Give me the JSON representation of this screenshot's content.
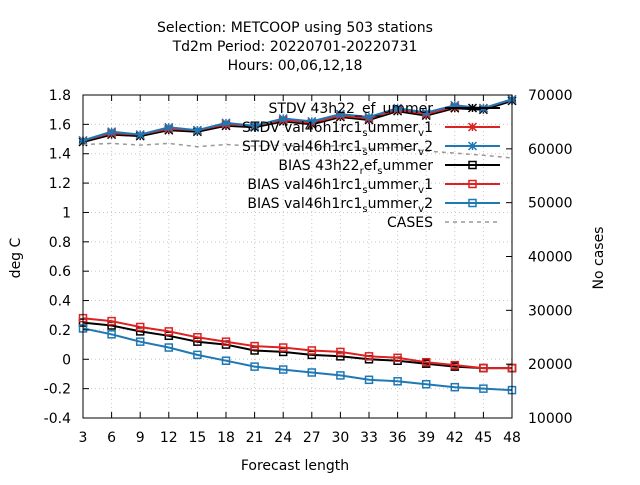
{
  "chart_data": {
    "type": "line",
    "title_lines": [
      "Selection: METCOOP using   503 stations",
      "Td2m   Period: 20220701-20220731",
      "Hours:  00,06,12,18"
    ],
    "xlabel": "Forecast length",
    "ylabel": "deg C",
    "y2label": "No cases",
    "x": [
      3,
      6,
      9,
      12,
      15,
      18,
      21,
      24,
      27,
      30,
      33,
      36,
      39,
      42,
      45,
      48
    ],
    "xlim": [
      3,
      48
    ],
    "ylim": [
      -0.4,
      1.8
    ],
    "y2lim": [
      10000,
      70000
    ],
    "yticks": [
      "1.8",
      "1.6",
      "1.4",
      "1.2",
      "1",
      "0.8",
      "0.6",
      "0.4",
      "0.2",
      "0",
      "-0.2",
      "-0.4"
    ],
    "y2ticks": [
      "70000",
      "60000",
      "50000",
      "40000",
      "30000",
      "20000",
      "10000"
    ],
    "grid": true,
    "legend_position": "top-right",
    "series": [
      {
        "name": "STDV 43h22_ef_ummer",
        "axis": "y1",
        "color": "#000000",
        "marker": "star",
        "dash": "",
        "values": [
          1.48,
          1.53,
          1.52,
          1.56,
          1.55,
          1.59,
          1.58,
          1.62,
          1.6,
          1.65,
          1.63,
          1.69,
          1.66,
          1.71,
          1.7,
          1.76
        ]
      },
      {
        "name": "STDV val46h1rc1_summer_v1",
        "axis": "y1",
        "color": "#dd2222",
        "marker": "star",
        "dash": "",
        "values": [
          1.49,
          1.54,
          1.53,
          1.57,
          1.56,
          1.6,
          1.59,
          1.63,
          1.61,
          1.66,
          1.64,
          1.7,
          1.67,
          1.72,
          1.71,
          1.77
        ]
      },
      {
        "name": "STDV val46h1rc1_summer_v2",
        "axis": "y1",
        "color": "#1f78b4",
        "marker": "star",
        "dash": "",
        "values": [
          1.49,
          1.55,
          1.53,
          1.58,
          1.56,
          1.61,
          1.59,
          1.64,
          1.62,
          1.67,
          1.65,
          1.71,
          1.68,
          1.73,
          1.71,
          1.77
        ]
      },
      {
        "name": "BIAS 43h22_ref_summer",
        "axis": "y1",
        "color": "#000000",
        "marker": "square",
        "dash": "",
        "values": [
          0.25,
          0.23,
          0.19,
          0.16,
          0.12,
          0.1,
          0.06,
          0.05,
          0.03,
          0.02,
          0.0,
          -0.01,
          -0.03,
          -0.05,
          -0.06,
          -0.06
        ]
      },
      {
        "name": "BIAS val46h1rc1_summer_v1",
        "axis": "y1",
        "color": "#dd2222",
        "marker": "square",
        "dash": "",
        "values": [
          0.28,
          0.26,
          0.22,
          0.19,
          0.15,
          0.12,
          0.09,
          0.08,
          0.06,
          0.05,
          0.02,
          0.01,
          -0.02,
          -0.04,
          -0.06,
          -0.06
        ]
      },
      {
        "name": "BIAS val46h1rc1_summer_v2",
        "axis": "y1",
        "color": "#1f78b4",
        "marker": "square",
        "dash": "",
        "values": [
          0.21,
          0.17,
          0.12,
          0.08,
          0.03,
          -0.01,
          -0.05,
          -0.07,
          -0.09,
          -0.11,
          -0.14,
          -0.15,
          -0.17,
          -0.19,
          -0.2,
          -0.21
        ]
      },
      {
        "name": "CASES",
        "axis": "y2",
        "color": "#999999",
        "marker": "none",
        "dash": "4,4",
        "values": [
          60800,
          61000,
          60700,
          61000,
          60400,
          60800,
          60500,
          60700,
          60300,
          60600,
          60000,
          60300,
          59600,
          59200,
          58800,
          58300
        ]
      }
    ],
    "legend": [
      {
        "label": "STDV 43h22_ef_ummer",
        "sub": null,
        "marker": "star",
        "color": "#000000",
        "dash": ""
      },
      {
        "label": "STDV val46h1rc1",
        "sub": [
          "s",
          "ummer",
          "v",
          "1"
        ],
        "marker": "star",
        "color": "#dd2222",
        "dash": ""
      },
      {
        "label": "STDV val46h1rc1",
        "sub": [
          "s",
          "ummer",
          "v",
          "2"
        ],
        "marker": "star",
        "color": "#1f78b4",
        "dash": ""
      },
      {
        "label": "BIAS 43h22",
        "sub": [
          "r",
          "ef",
          "s",
          "ummer"
        ],
        "marker": "square",
        "color": "#000000",
        "dash": ""
      },
      {
        "label": "BIAS val46h1rc1",
        "sub": [
          "s",
          "ummer",
          "v",
          "1"
        ],
        "marker": "square",
        "color": "#dd2222",
        "dash": ""
      },
      {
        "label": "BIAS val46h1rc1",
        "sub": [
          "s",
          "ummer",
          "v",
          "2"
        ],
        "marker": "square",
        "color": "#1f78b4",
        "dash": ""
      },
      {
        "label": "CASES",
        "sub": null,
        "marker": "none",
        "color": "#999999",
        "dash": "4,4"
      }
    ]
  }
}
